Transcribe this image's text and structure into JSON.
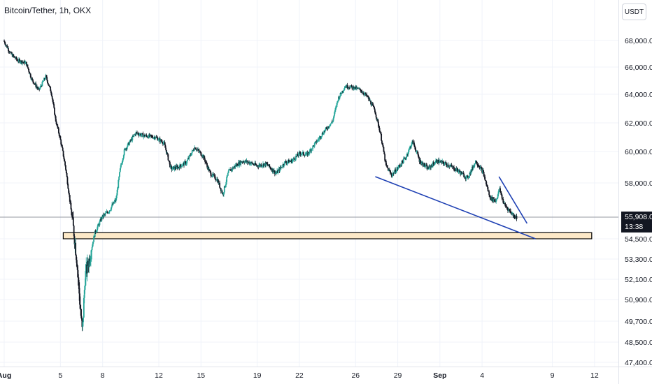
{
  "header": {
    "title": "Bitcoin/Tether, 1h, OKX",
    "currency": "USDT"
  },
  "price_badge": {
    "price": "55,908.0",
    "countdown": "13:38"
  },
  "colors": {
    "up": "#26a69a",
    "down": "#131722",
    "support_fill": "#fde9c8",
    "support_border": "#000000",
    "trendline": "#1d3fb3",
    "grid": "#f0f3fa",
    "axis_text": "#131722",
    "price_line": "#9598a1"
  },
  "chart_data": {
    "type": "candlestick",
    "title": "Bitcoin/Tether, 1h, OKX",
    "xlabel": "",
    "ylabel": "",
    "y_axis_labels": [
      "68,000.0",
      "66,000.0",
      "64,000.0",
      "62,000.0",
      "60,000.0",
      "58,000.0",
      "54,500.0",
      "53,300.0",
      "52,100.0",
      "50,900.0",
      "49,700.0",
      "48,500.0",
      "47,400.0"
    ],
    "y_ticks": [
      68000,
      66000,
      64000,
      62000,
      60000,
      58000,
      54500,
      53300,
      52100,
      50900,
      49700,
      48500,
      47400
    ],
    "x_tick_labels": [
      "Aug",
      "5",
      "8",
      "12",
      "15",
      "19",
      "22",
      "26",
      "29",
      "Sep",
      "4",
      "9",
      "12"
    ],
    "x_ticks": [
      0,
      4,
      7,
      11,
      14,
      18,
      21,
      25,
      28,
      31,
      34,
      39,
      42
    ],
    "x_range_days": [
      -0.3,
      43.7
    ],
    "current_price": 55908,
    "price_path": [
      [
        0,
        68000
      ],
      [
        0.5,
        67000
      ],
      [
        1,
        66500
      ],
      [
        1.6,
        66300
      ],
      [
        2,
        65100
      ],
      [
        2.5,
        64300
      ],
      [
        3,
        65300
      ],
      [
        3.4,
        64100
      ],
      [
        3.7,
        62200
      ],
      [
        4,
        61000
      ],
      [
        4.4,
        59000
      ],
      [
        4.7,
        57000
      ],
      [
        5,
        54900
      ],
      [
        5.2,
        53300
      ],
      [
        5.4,
        51000
      ],
      [
        5.6,
        49000
      ],
      [
        5.8,
        52300
      ],
      [
        6.1,
        53300
      ],
      [
        6.5,
        54900
      ],
      [
        7,
        55900
      ],
      [
        7.5,
        56300
      ],
      [
        8,
        57000
      ],
      [
        8.3,
        58900
      ],
      [
        8.6,
        60100
      ],
      [
        9,
        60700
      ],
      [
        9.4,
        61300
      ],
      [
        10,
        61100
      ],
      [
        10.8,
        61000
      ],
      [
        11.4,
        60600
      ],
      [
        11.9,
        58900
      ],
      [
        12.4,
        59000
      ],
      [
        13,
        59300
      ],
      [
        13.6,
        60300
      ],
      [
        14.2,
        59700
      ],
      [
        14.7,
        58600
      ],
      [
        15.2,
        58200
      ],
      [
        15.6,
        57300
      ],
      [
        16,
        58700
      ],
      [
        16.5,
        59100
      ],
      [
        17,
        59400
      ],
      [
        17.5,
        59300
      ],
      [
        18,
        59100
      ],
      [
        18.7,
        59200
      ],
      [
        19.4,
        58600
      ],
      [
        20,
        59300
      ],
      [
        20.5,
        59400
      ],
      [
        21.1,
        59900
      ],
      [
        21.6,
        59800
      ],
      [
        22.2,
        60600
      ],
      [
        22.8,
        61400
      ],
      [
        23.4,
        62100
      ],
      [
        23.8,
        63700
      ],
      [
        24.3,
        64600
      ],
      [
        24.9,
        64500
      ],
      [
        25.4,
        64300
      ],
      [
        25.9,
        63800
      ],
      [
        26.4,
        62900
      ],
      [
        26.8,
        61300
      ],
      [
        27.2,
        59100
      ],
      [
        27.6,
        58500
      ],
      [
        28,
        58900
      ],
      [
        28.6,
        59600
      ],
      [
        29.1,
        60700
      ],
      [
        29.6,
        59400
      ],
      [
        30.2,
        58900
      ],
      [
        30.8,
        59400
      ],
      [
        31.5,
        59200
      ],
      [
        32.3,
        58800
      ],
      [
        33,
        58300
      ],
      [
        33.6,
        59400
      ],
      [
        34.1,
        58700
      ],
      [
        34.6,
        57100
      ],
      [
        35,
        56900
      ],
      [
        35.3,
        57600
      ],
      [
        35.6,
        56700
      ],
      [
        36,
        56300
      ],
      [
        36.3,
        56000
      ],
      [
        36.5,
        55900
      ]
    ],
    "support_zone": {
      "low": 54500,
      "high": 54900,
      "x_start": 4.2,
      "x_end": 41.8
    },
    "trendlines": [
      {
        "x0": 26.4,
        "y0": 58400,
        "x1": 37.8,
        "y1": 54500
      },
      {
        "x0": 35.2,
        "y0": 58400,
        "x1": 37.2,
        "y1": 55500
      }
    ]
  }
}
